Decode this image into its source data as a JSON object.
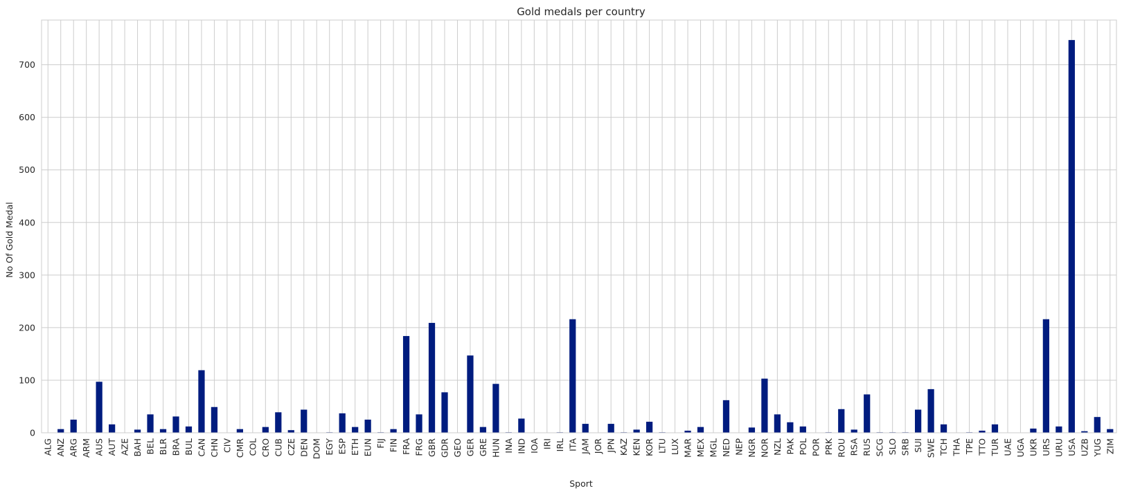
{
  "chart_data": {
    "type": "bar",
    "title": "Gold medals per country",
    "xlabel": "Sport",
    "ylabel": "No Of Gold Medal",
    "ylim": [
      0,
      785
    ],
    "yticks": [
      0,
      100,
      200,
      300,
      400,
      500,
      600,
      700
    ],
    "grid": true,
    "legend": "none",
    "bar_color": "#001c7f",
    "categories": [
      "ALG",
      "ANZ",
      "ARG",
      "ARM",
      "AUS",
      "AUT",
      "AZE",
      "BAH",
      "BEL",
      "BLR",
      "BRA",
      "BUL",
      "CAN",
      "CHN",
      "CIV",
      "CMR",
      "COL",
      "CRO",
      "CUB",
      "CZE",
      "DEN",
      "DOM",
      "EGY",
      "ESP",
      "ETH",
      "EUN",
      "FIJ",
      "FIN",
      "FRA",
      "FRG",
      "GBR",
      "GDR",
      "GEO",
      "GER",
      "GRE",
      "HUN",
      "INA",
      "IND",
      "IOA",
      "IRI",
      "IRL",
      "ITA",
      "JAM",
      "JOR",
      "JPN",
      "KAZ",
      "KEN",
      "KOR",
      "LTU",
      "LUX",
      "MAR",
      "MEX",
      "MGL",
      "NED",
      "NEP",
      "NGR",
      "NOR",
      "NZL",
      "PAK",
      "POL",
      "POR",
      "PRK",
      "ROU",
      "RSA",
      "RUS",
      "SCG",
      "SLO",
      "SRB",
      "SUI",
      "SWE",
      "TCH",
      "THA",
      "TPE",
      "TTO",
      "TUR",
      "UAE",
      "UGA",
      "UKR",
      "URS",
      "URU",
      "USA",
      "UZB",
      "YUG",
      "ZIM"
    ],
    "values": [
      0,
      7,
      25,
      0,
      97,
      16,
      0,
      6,
      35,
      7,
      31,
      12,
      119,
      49,
      0,
      7,
      0,
      11,
      39,
      5,
      44,
      0,
      1,
      37,
      11,
      25,
      1,
      7,
      184,
      35,
      209,
      77,
      0,
      147,
      11,
      93,
      1,
      27,
      0,
      0,
      1,
      216,
      17,
      0,
      17,
      1,
      6,
      21,
      1,
      0,
      4,
      11,
      0,
      62,
      0,
      10,
      103,
      35,
      20,
      12,
      0,
      1,
      45,
      6,
      73,
      1,
      1,
      1,
      44,
      83,
      16,
      0,
      1,
      4,
      16,
      0,
      0,
      8,
      216,
      12,
      747,
      3,
      30,
      7
    ]
  }
}
